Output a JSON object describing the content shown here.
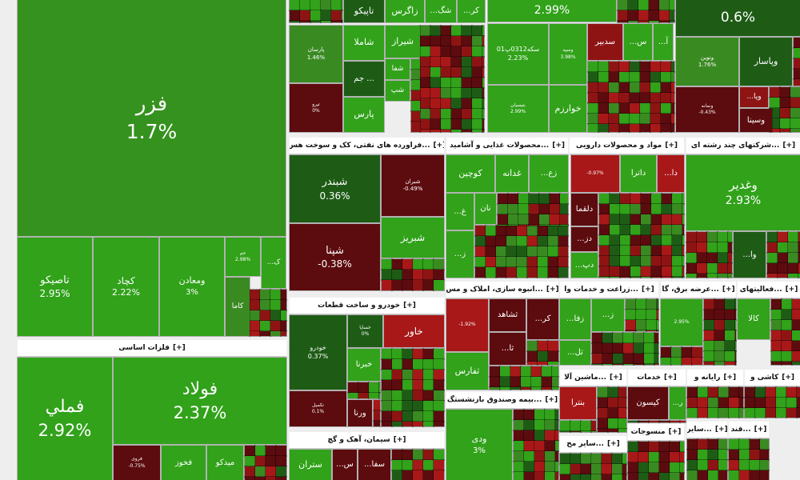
{
  "expand_label": "[+]",
  "sectors": [
    {
      "tiles": [
        {
          "name": "فزر",
          "change": "1.7%",
          "color": "#35921e"
        },
        {
          "name": "تاصیکو",
          "change": "2.95%",
          "color": "#31a21a"
        },
        {
          "name": "کچاد",
          "change": "2.22%",
          "color": "#31a21a"
        },
        {
          "name": "ومعادن",
          "change": "3%",
          "color": "#31a21a"
        },
        {
          "name": "جم",
          "change": "2.98%",
          "color": "#31a21a"
        },
        {
          "name": "کاما",
          "color": "#3a8a22"
        },
        {
          "name": "...ک",
          "color": "#31a21a"
        }
      ]
    },
    {
      "title": "فلزات اساسی",
      "tiles": [
        {
          "name": "فملي",
          "change": "2.92%",
          "color": "#31a21a"
        },
        {
          "name": "فولاد",
          "change": "2.37%",
          "color": "#31a21a"
        },
        {
          "name": "فروی",
          "change": "-0.75%",
          "color": "#5c0b0e"
        },
        {
          "name": "فخوز",
          "color": "#31a21a"
        },
        {
          "name": "میدکو",
          "color": "#31a21a"
        }
      ]
    },
    {
      "tiles": [
        {
          "name": "تاپیکو",
          "color": "#1e5c16"
        },
        {
          "name": "زاگرس",
          "color": "#31a21a"
        },
        {
          "name": "...شگ",
          "color": "#31a21a"
        },
        {
          "name": "...کر",
          "color": "#31a21a"
        },
        {
          "name": "پارسان",
          "change": "1.46%",
          "color": "#3a8a22"
        },
        {
          "name": "تپرو",
          "change": "0%",
          "color": "#5c0b0e"
        },
        {
          "name": "شاملا",
          "color": "#31a21a"
        },
        {
          "name": "جم ...",
          "color": "#1e5c16"
        },
        {
          "name": "پارس",
          "color": "#31a21a"
        },
        {
          "name": "شیراز",
          "color": "#31a21a"
        },
        {
          "name": "شفا",
          "color": "#31a21a"
        },
        {
          "name": "شپ",
          "color": "#31a21a"
        }
      ]
    },
    {
      "tiles": [
        {
          "change": "2.99%",
          "color": "#31a21a"
        },
        {
          "name": "سکه0312پ01",
          "change": "2.23%",
          "color": "#31a21a"
        },
        {
          "name": "وسپه",
          "change": "3.98%",
          "color": "#31a21a"
        },
        {
          "name": "بتیسیان",
          "change": "2.99%",
          "color": "#31a21a"
        },
        {
          "name": "خوارزم",
          "color": "#31a21a"
        },
        {
          "name": "سدبیر",
          "color": "#8e1414"
        },
        {
          "name": "...س",
          "color": "#31a21a"
        },
        {
          "name": "...آ",
          "color": "#31a21a"
        }
      ]
    },
    {
      "tiles": [
        {
          "change": "0.6%",
          "color": "#1e5c16"
        },
        {
          "name": "ونوین",
          "change": "1.76%",
          "color": "#3a8a22"
        },
        {
          "name": "وپاسار",
          "color": "#1e5c16"
        },
        {
          "name": "...وپا",
          "color": "#8e1414"
        },
        {
          "name": "ونمانه",
          "change": "-0.43%",
          "color": "#5c0b0e"
        },
        {
          "name": "وسینا",
          "color": "#5c0b0e"
        }
      ]
    },
    {
      "title": "...فراورده های نفتی، کک و سوخت هس",
      "tiles": [
        {
          "name": "شبندر",
          "change": "0.36%",
          "color": "#1e5c16"
        },
        {
          "name": "شپنا",
          "change": "-0.38%",
          "color": "#5c0b0e"
        },
        {
          "name": "شبران",
          "change": "-0.49%",
          "color": "#5c0b0e"
        },
        {
          "name": "شبریز",
          "color": "#31a21a"
        }
      ]
    },
    {
      "title": "...محصولات غذایی و آشامید",
      "tiles": [
        {
          "name": "کوچین",
          "color": "#31a21a"
        },
        {
          "name": "غدانه",
          "color": "#31a21a"
        },
        {
          "name": "...زع",
          "color": "#31a21a"
        },
        {
          "name": "نان",
          "color": "#31a21a"
        },
        {
          "name": "...غ",
          "color": "#31a21a"
        },
        {
          "name": "...ز",
          "color": "#31a21a"
        }
      ]
    },
    {
      "title": "مواد و محصولات دارویی",
      "tiles": [
        {
          "change": "-0.97%",
          "color": "#a81818"
        },
        {
          "name": "داترا",
          "color": "#31a21a"
        },
        {
          "name": "...دا",
          "color": "#a81818"
        },
        {
          "name": "دلقما",
          "color": "#5c0b0e"
        },
        {
          "name": "...دز",
          "color": "#5c0b0e"
        },
        {
          "name": "...دپ",
          "color": "#31a21a"
        }
      ]
    },
    {
      "title": "...شرکتهای چند رشته ای",
      "tiles": [
        {
          "name": "وغدیر",
          "change": "2.93%",
          "color": "#31a21a"
        },
        {
          "name": "...وا",
          "color": "#1e5c16"
        }
      ]
    },
    {
      "title": "...انبوه سازی، املاک و مس",
      "tiles": [
        {
          "change": "-1.92%",
          "color": "#a81818"
        },
        {
          "name": "ثشاهد",
          "color": "#5c0b0e"
        },
        {
          "name": "...کر",
          "color": "#5c0b0e"
        },
        {
          "name": "...ثا",
          "color": "#5c0b0e"
        },
        {
          "name": "ثفارس",
          "color": "#31a21a"
        }
      ]
    },
    {
      "title": "...زراعت و خدمات وا",
      "tiles": [
        {
          "name": "...زفا",
          "color": "#31a21a"
        },
        {
          "name": "...ز",
          "color": "#31a21a"
        },
        {
          "name": "...تل",
          "color": "#31a21a"
        }
      ]
    },
    {
      "title": "...عرضه برق، گا",
      "tiles": [
        {
          "change": "2.95%",
          "color": "#31a21a"
        }
      ]
    },
    {
      "title": "...فعالیتهای",
      "tiles": [
        {
          "name": "کالا",
          "color": "#31a21a"
        }
      ]
    },
    {
      "title": "خودرو و ساخت قطعات",
      "tiles": [
        {
          "name": "خودرو",
          "change": "0.37%",
          "color": "#1e5c16"
        },
        {
          "name": "خساپا",
          "change": "0%",
          "color": "#1e5c16"
        },
        {
          "name": "خاور",
          "color": "#a81818"
        },
        {
          "name": "خبرنا",
          "color": "#31a21a"
        },
        {
          "name": "ورنا",
          "color": "#5c0b0e"
        },
        {
          "name": "تکمیل",
          "change": "0.1%",
          "color": "#5c0b0e"
        }
      ]
    },
    {
      "title": "سیمان، آهک و گچ",
      "tiles": [
        {
          "name": "ستران",
          "color": "#31a21a"
        },
        {
          "name": "...س",
          "color": "#5c0b0e"
        },
        {
          "name": "...سفا",
          "color": "#5c0b0e"
        }
      ]
    },
    {
      "title": "...بیمه وصندوق بازنشستگ",
      "tiles": [
        {
          "name": "ودی",
          "change": "3%",
          "color": "#31a21a"
        }
      ]
    },
    {
      "title": "...ماشین آلا",
      "tiles": [
        {
          "name": "بنترا",
          "color": "#a81818"
        }
      ]
    },
    {
      "title": "...سایر مح",
      "tiles": []
    },
    {
      "title": "خدمات",
      "tiles": [
        {
          "name": "کیسون",
          "color": "#5c0b0e"
        },
        {
          "name": "...ر",
          "color": "#31a21a"
        }
      ]
    },
    {
      "title": "منسوجات",
      "tiles": []
    },
    {
      "title": "رایانه و",
      "tiles": []
    },
    {
      "title": "کاشی و",
      "tiles": []
    },
    {
      "title": "...سایر",
      "tiles": []
    },
    {
      "title": "...قند",
      "tiles": []
    }
  ]
}
